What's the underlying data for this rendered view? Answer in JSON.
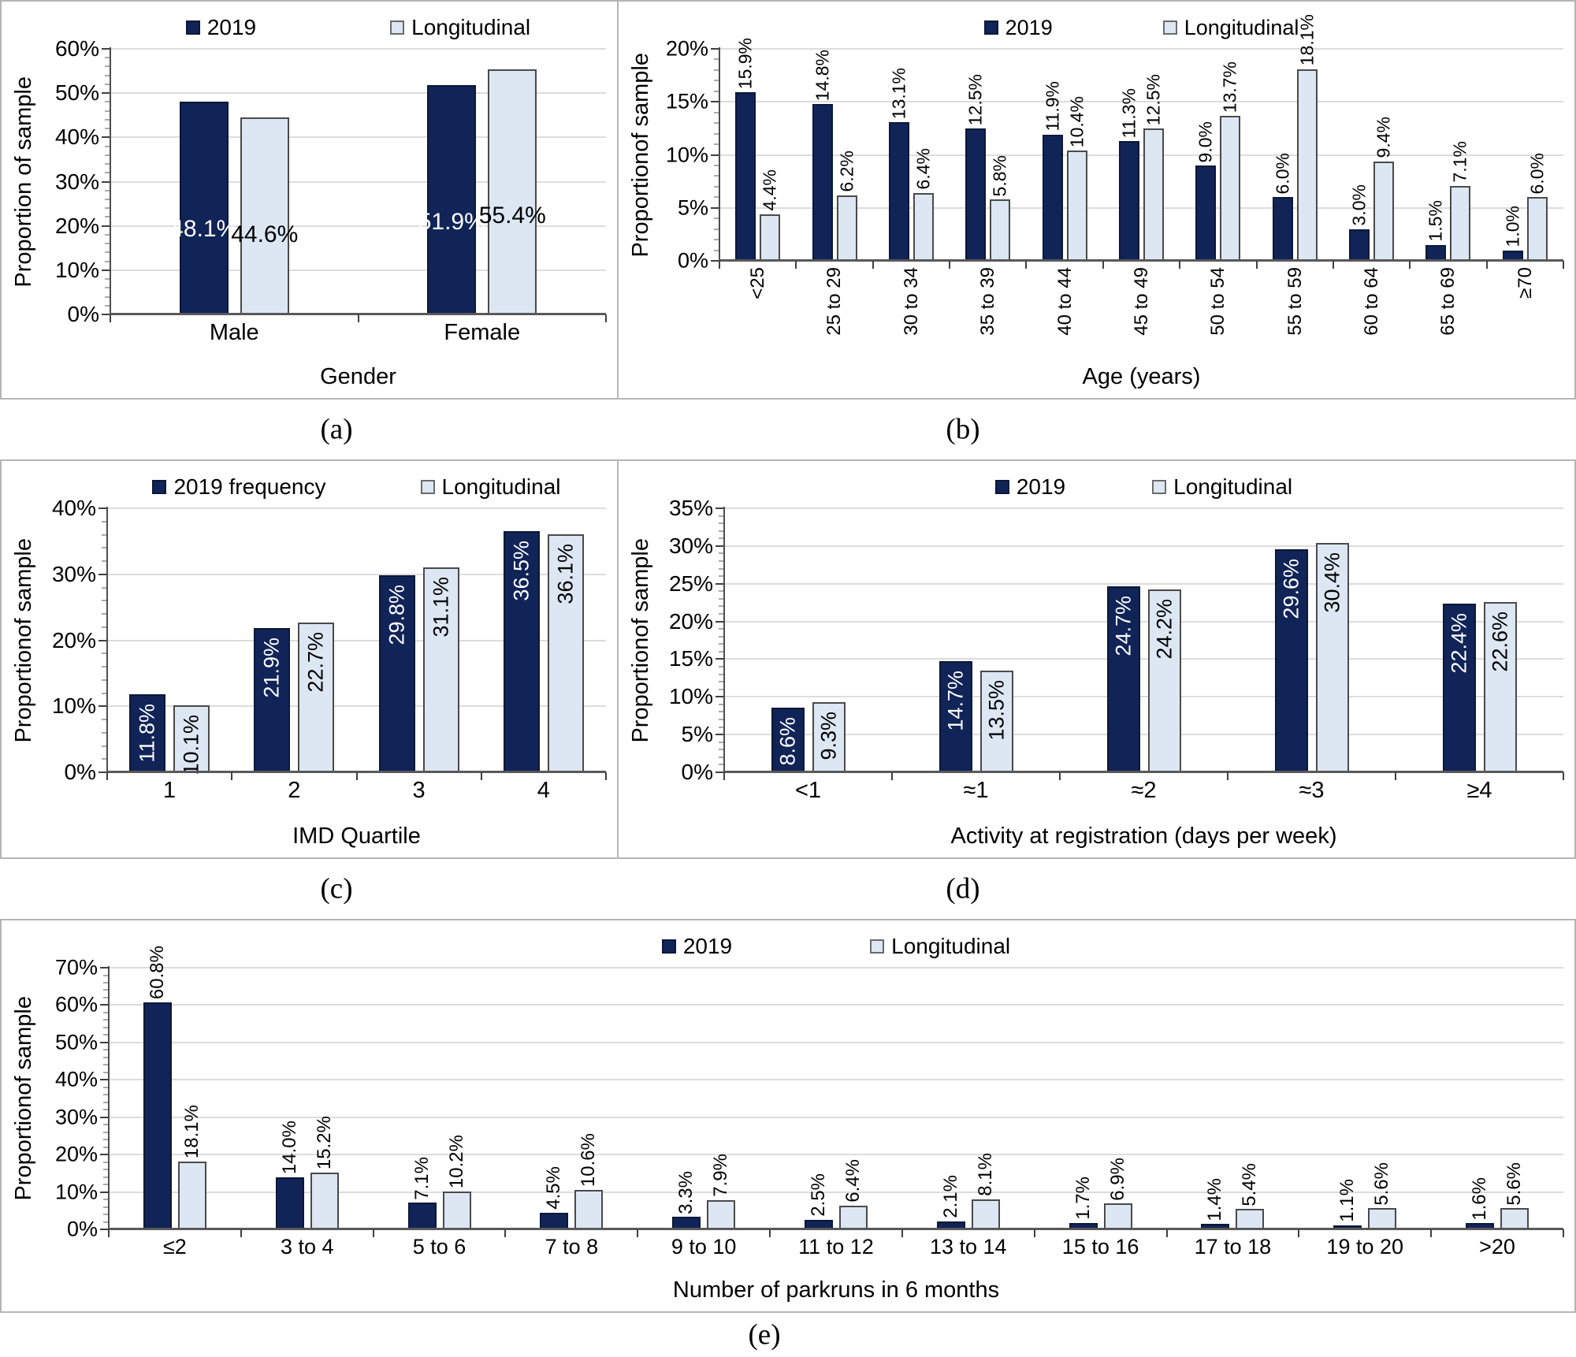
{
  "colors": {
    "series_2019": "#112458",
    "series_longitudinal": "#dce7f3",
    "dark_bar_border": "#0b1836",
    "light_bar_border": "#4a4a4a",
    "gridline": "#dcdcdc",
    "axis": "#4d4d4d",
    "label_on_dark": "#ffffff",
    "label_on_light": "#000000",
    "panel_border": "#b5b5b5"
  },
  "legend_swatch_names": [
    "filled-square-icon",
    "outlined-square-icon"
  ],
  "chart_data": [
    {
      "type": "bar",
      "caption": "(a)",
      "title": "",
      "xlabel": "Gender",
      "ylabel": "Proportion of sample",
      "ylim": [
        0,
        60
      ],
      "ytick_step": 10,
      "yminor_step": 2,
      "grid": true,
      "legend_position": "top",
      "label_mode": "inside-horizontal",
      "xlabels_rotated": false,
      "categories": [
        "Male",
        "Female"
      ],
      "series": [
        {
          "name": "2019",
          "values": [
            48.1,
            51.9
          ]
        },
        {
          "name": "Longitudinal",
          "values": [
            44.6,
            55.4
          ]
        }
      ],
      "value_labels": [
        [
          "48.1%",
          "51.9%"
        ],
        [
          "44.6%",
          "55.4%"
        ]
      ]
    },
    {
      "type": "bar",
      "caption": "(b)",
      "title": "",
      "xlabel": "Age (years)",
      "ylabel": "Proportionof sample",
      "ylim": [
        0,
        20
      ],
      "ytick_step": 5,
      "yminor_step": 1,
      "grid": true,
      "legend_position": "top",
      "label_mode": "outside-vertical",
      "xlabels_rotated": true,
      "categories": [
        "<25",
        "25 to 29",
        "30 to 34",
        "35 to 39",
        "40 to 44",
        "45 to 49",
        "50 to 54",
        "55 to 59",
        "60 to 64",
        "65 to 69",
        "≥70"
      ],
      "series": [
        {
          "name": "2019",
          "values": [
            15.9,
            14.8,
            13.1,
            12.5,
            11.9,
            11.3,
            9.0,
            6.0,
            3.0,
            1.5,
            1.0
          ]
        },
        {
          "name": "Longitudinal",
          "values": [
            4.4,
            6.2,
            6.4,
            5.8,
            10.4,
            12.5,
            13.7,
            18.1,
            9.4,
            7.1,
            6.0
          ]
        }
      ],
      "value_labels": [
        [
          "15.9%",
          "14.8%",
          "13.1%",
          "12.5%",
          "11.9%",
          "11.3%",
          "9.0%",
          "6.0%",
          "3.0%",
          "1.5%",
          "1.0%"
        ],
        [
          "4.4%",
          "6.2%",
          "6.4%",
          "5.8%",
          "10.4%",
          "12.5%",
          "13.7%",
          "18.1%",
          "9.4%",
          "7.1%",
          "6.0%"
        ]
      ]
    },
    {
      "type": "bar",
      "caption": "(c)",
      "title": "",
      "xlabel": "IMD Quartile",
      "ylabel": "Proportionof sample",
      "ylim": [
        0,
        40
      ],
      "ytick_step": 10,
      "yminor_step": 2,
      "grid": true,
      "legend_position": "top",
      "label_mode": "inside-vertical",
      "xlabels_rotated": false,
      "categories": [
        "1",
        "2",
        "3",
        "4"
      ],
      "series": [
        {
          "name": "2019 frequency",
          "values": [
            11.8,
            21.9,
            29.8,
            36.5
          ]
        },
        {
          "name": "Longitudinal",
          "values": [
            10.1,
            22.7,
            31.1,
            36.1
          ]
        }
      ],
      "value_labels": [
        [
          "11.8%",
          "21.9%",
          "29.8%",
          "36.5%"
        ],
        [
          "10.1%",
          "22.7%",
          "31.1%",
          "36.1%"
        ]
      ]
    },
    {
      "type": "bar",
      "caption": "(d)",
      "title": "",
      "xlabel": "Activity at registration (days per week)",
      "ylabel": "Proportionof sample",
      "ylim": [
        0,
        35
      ],
      "ytick_step": 5,
      "yminor_step": 1,
      "grid": true,
      "legend_position": "top",
      "label_mode": "inside-vertical",
      "xlabels_rotated": false,
      "categories": [
        "<1",
        "≈1",
        "≈2",
        "≈3",
        "≥4"
      ],
      "series": [
        {
          "name": "2019",
          "values": [
            8.6,
            14.7,
            24.7,
            29.6,
            22.4
          ]
        },
        {
          "name": "Longitudinal",
          "values": [
            9.3,
            13.5,
            24.2,
            30.4,
            22.6
          ]
        }
      ],
      "value_labels": [
        [
          "8.6%",
          "14.7%",
          "24.7%",
          "29.6%",
          "22.4%"
        ],
        [
          "9.3%",
          "13.5%",
          "24.2%",
          "30.4%",
          "22.6%"
        ]
      ]
    },
    {
      "type": "bar",
      "caption": "(e)",
      "title": "",
      "xlabel": "Number of parkruns in 6 months",
      "ylabel": "Proportionof sample",
      "ylim": [
        0,
        70
      ],
      "ytick_step": 10,
      "yminor_step": 2,
      "grid": true,
      "legend_position": "top",
      "label_mode": "outside-vertical",
      "xlabels_rotated": false,
      "categories": [
        "≤2",
        "3 to 4",
        "5 to 6",
        "7 to 8",
        "9 to 10",
        "11 to 12",
        "13 to 14",
        "15 to 16",
        "17 to 18",
        "19 to 20",
        ">20"
      ],
      "series": [
        {
          "name": "2019",
          "values": [
            60.8,
            14.0,
            7.1,
            4.5,
            3.3,
            2.5,
            2.1,
            1.7,
            1.4,
            1.1,
            1.6
          ]
        },
        {
          "name": "Longitudinal",
          "values": [
            18.1,
            15.2,
            10.2,
            10.6,
            7.9,
            6.4,
            8.1,
            6.9,
            5.4,
            5.6,
            5.6
          ]
        }
      ],
      "value_labels": [
        [
          "60.8%",
          "14.0%",
          "7.1%",
          "4.5%",
          "3.3%",
          "2.5%",
          "2.1%",
          "1.7%",
          "1.4%",
          "1.1%",
          "1.6%"
        ],
        [
          "18.1%",
          "15.2%",
          "10.2%",
          "10.6%",
          "7.9%",
          "6.4%",
          "8.1%",
          "6.9%",
          "5.4%",
          "5.6%",
          "5.6%"
        ]
      ]
    }
  ]
}
